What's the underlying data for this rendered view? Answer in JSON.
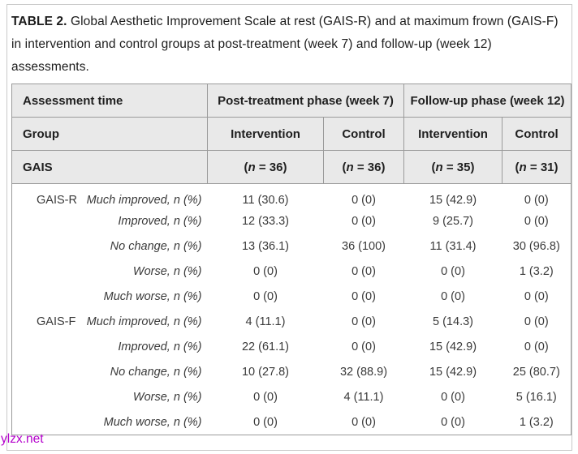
{
  "watermark": "ylzx.net",
  "caption": {
    "label": "TABLE 2.",
    "text": " Global Aesthetic Improvement Scale at rest (GAIS-R) and at maximum frown (GAIS-F) in intervention and control groups at post-treatment (week 7) and follow-up (week 12) assessments."
  },
  "table": {
    "header": {
      "row1": {
        "col1": "Assessment time",
        "span1": "Post-treatment phase (week 7)",
        "span2": "Follow-up phase (week 12)"
      },
      "row2": {
        "col1": "Group",
        "cols": [
          "Intervention",
          "Control",
          "Intervention",
          "Control"
        ]
      },
      "row3": {
        "col1": "GAIS",
        "n_cells": [
          {
            "pre": "(",
            "n": "n",
            "post": " = 36)"
          },
          {
            "pre": "(",
            "n": "n",
            "post": " = 36)"
          },
          {
            "pre": "(",
            "n": "n",
            "post": " = 35)"
          },
          {
            "pre": "(",
            "n": "n",
            "post": " = 31)"
          }
        ]
      }
    },
    "rows": [
      {
        "group": "GAIS-R",
        "label": "Much improved, n (%)",
        "values": [
          "11 (30.6)",
          "0 (0)",
          "15 (42.9)",
          "0 (0)"
        ]
      },
      {
        "group": "",
        "label": "Improved, n (%)",
        "values": [
          "12 (33.3)",
          "0 (0)",
          "9 (25.7)",
          "0 (0)"
        ]
      },
      {
        "group": "",
        "label": "No change, n (%)",
        "values": [
          "13 (36.1)",
          "36 (100)",
          "11 (31.4)",
          "30 (96.8)"
        ]
      },
      {
        "group": "",
        "label": "Worse, n (%)",
        "values": [
          "0 (0)",
          "0 (0)",
          "0 (0)",
          "1 (3.2)"
        ]
      },
      {
        "group": "",
        "label": "Much worse, n (%)",
        "values": [
          "0 (0)",
          "0 (0)",
          "0 (0)",
          "0 (0)"
        ]
      },
      {
        "group": "GAIS-F",
        "label": "Much improved, n (%)",
        "values": [
          "4 (11.1)",
          "0 (0)",
          "5 (14.3)",
          "0 (0)"
        ]
      },
      {
        "group": "",
        "label": "Improved, n (%)",
        "values": [
          "22 (61.1)",
          "0 (0)",
          "15 (42.9)",
          "0 (0)"
        ]
      },
      {
        "group": "",
        "label": "No change, n (%)",
        "values": [
          "10 (27.8)",
          "32 (88.9)",
          "15 (42.9)",
          "25 (80.7)"
        ]
      },
      {
        "group": "",
        "label": "Worse, n (%)",
        "values": [
          "0 (0)",
          "4 (11.1)",
          "0 (0)",
          "5 (16.1)"
        ]
      },
      {
        "group": "",
        "label": "Much worse, n (%)",
        "values": [
          "0 (0)",
          "0 (0)",
          "0 (0)",
          "1 (3.2)"
        ]
      }
    ]
  },
  "colors": {
    "header_bg": "#e9e9e9",
    "table_border": "#9b9b9b",
    "frame_border": "#c9c9c9",
    "watermark": "#b400cc",
    "text": "#1f1f1f"
  }
}
